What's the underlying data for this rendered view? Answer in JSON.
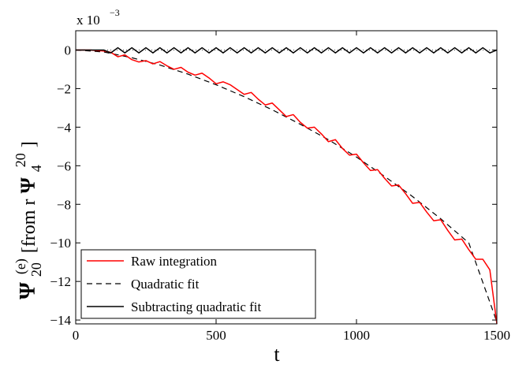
{
  "chart_data": {
    "type": "line",
    "title": "",
    "xlabel": "t",
    "ylabel": {
      "symbol": "Ψ",
      "sub": "20",
      "sup": "(e)",
      "bracket_open": " [from r",
      "inner_symbol": "Ψ",
      "inner_sub": "4",
      "inner_sup": "20",
      "bracket_close": "]"
    },
    "y_scale_label": {
      "prefix": "x 10",
      "exponent": "−3"
    },
    "xlim": [
      0,
      1500
    ],
    "ylim": [
      -14.2,
      1.0
    ],
    "x_ticks": [
      0,
      500,
      1000,
      1500
    ],
    "x_tick_labels": [
      "0",
      "500",
      "1000",
      "1500"
    ],
    "y_ticks": [
      0,
      -2,
      -4,
      -6,
      -8,
      -10,
      -12,
      -14
    ],
    "y_tick_labels": [
      "0",
      "−2",
      "−4",
      "−6",
      "−8",
      "−10",
      "−12",
      "−14"
    ],
    "grid": false,
    "legend_position": "bottom-left",
    "series": [
      {
        "name": "Raw integration",
        "color": "#ff0000",
        "dash": "solid",
        "x": [
          0,
          50,
          100,
          125,
          150,
          175,
          200,
          225,
          250,
          275,
          300,
          325,
          350,
          375,
          400,
          425,
          450,
          475,
          500,
          525,
          550,
          575,
          600,
          625,
          650,
          675,
          700,
          725,
          750,
          775,
          800,
          825,
          850,
          875,
          900,
          925,
          950,
          975,
          1000,
          1025,
          1050,
          1075,
          1100,
          1125,
          1150,
          1175,
          1200,
          1225,
          1250,
          1275,
          1300,
          1325,
          1350,
          1375,
          1400,
          1425,
          1450,
          1475,
          1500
        ],
        "y": [
          0,
          0,
          -0.05,
          -0.12,
          -0.35,
          -0.25,
          -0.5,
          -0.62,
          -0.55,
          -0.72,
          -0.6,
          -0.82,
          -1.0,
          -0.9,
          -1.15,
          -1.3,
          -1.2,
          -1.45,
          -1.75,
          -1.65,
          -1.8,
          -2.05,
          -2.3,
          -2.2,
          -2.55,
          -2.85,
          -2.75,
          -3.1,
          -3.45,
          -3.35,
          -3.75,
          -4.05,
          -4.0,
          -4.35,
          -4.75,
          -4.65,
          -5.1,
          -5.45,
          -5.4,
          -5.85,
          -6.25,
          -6.2,
          -6.65,
          -7.05,
          -7.0,
          -7.45,
          -7.95,
          -7.9,
          -8.4,
          -8.85,
          -8.8,
          -9.35,
          -9.85,
          -9.8,
          -10.35,
          -10.85,
          -10.85,
          -11.4,
          -14.2
        ]
      },
      {
        "name": "Quadratic fit",
        "color": "#000000",
        "dash": "dashed",
        "x": [
          0,
          100,
          200,
          300,
          400,
          500,
          600,
          700,
          800,
          900,
          1000,
          1100,
          1200,
          1300,
          1400,
          1500
        ],
        "y": [
          0,
          -0.1,
          -0.4,
          -0.78,
          -1.25,
          -1.8,
          -2.42,
          -3.1,
          -3.85,
          -4.65,
          -5.55,
          -6.55,
          -7.6,
          -8.75,
          -10.0,
          -14.1
        ]
      },
      {
        "name": "Subtracting quadratic fit",
        "color": "#000000",
        "dash": "solid",
        "x": [
          0,
          100,
          125,
          150,
          175,
          200,
          225,
          250,
          275,
          300,
          325,
          350,
          375,
          400,
          425,
          450,
          475,
          500,
          525,
          550,
          575,
          600,
          625,
          650,
          675,
          700,
          725,
          750,
          775,
          800,
          825,
          850,
          875,
          900,
          925,
          950,
          975,
          1000,
          1025,
          1050,
          1075,
          1100,
          1125,
          1150,
          1175,
          1200,
          1225,
          1250,
          1275,
          1300,
          1325,
          1350,
          1375,
          1400,
          1425,
          1450,
          1475,
          1500
        ],
        "y": [
          0,
          0,
          -0.15,
          0.12,
          -0.15,
          0.12,
          -0.15,
          0.12,
          -0.15,
          0.12,
          -0.15,
          0.12,
          -0.15,
          0.12,
          -0.15,
          0.12,
          -0.15,
          0.12,
          -0.15,
          0.12,
          -0.15,
          0.12,
          -0.15,
          0.12,
          -0.15,
          0.12,
          -0.15,
          0.12,
          -0.15,
          0.12,
          -0.15,
          0.12,
          -0.15,
          0.12,
          -0.15,
          0.12,
          -0.15,
          0.12,
          -0.15,
          0.12,
          -0.15,
          0.12,
          -0.15,
          0.12,
          -0.15,
          0.12,
          -0.15,
          0.12,
          -0.15,
          0.12,
          -0.15,
          0.12,
          -0.15,
          0.12,
          -0.15,
          0.12,
          -0.15,
          0.0
        ]
      }
    ],
    "reference_line": {
      "y": 0,
      "style": "dotted",
      "color": "#000000"
    }
  }
}
